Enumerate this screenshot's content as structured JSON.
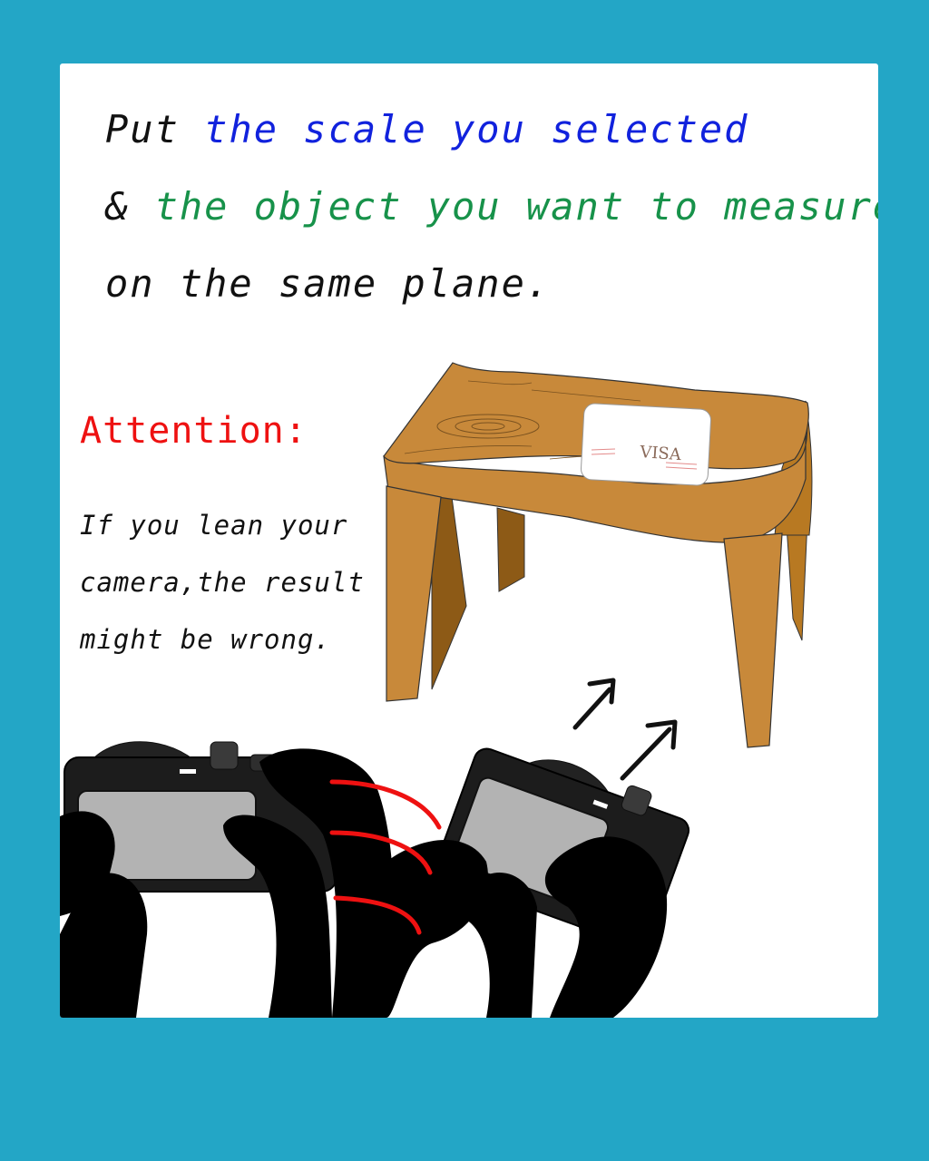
{
  "instruction": {
    "line1_prefix": "Put ",
    "line1_highlight": "the scale you selected",
    "line2_prefix": "& ",
    "line2_highlight": "the object you want to measure",
    "line3": "on the same plane."
  },
  "attention": {
    "title": "Attention:",
    "lines": [
      "If you lean your",
      "camera,the result",
      "might be wrong."
    ]
  },
  "card_label": "VISA",
  "colors": {
    "background": "#23a6c6",
    "scale_text": "#1122dd",
    "object_text": "#17924a",
    "attention": "#ee1111"
  }
}
